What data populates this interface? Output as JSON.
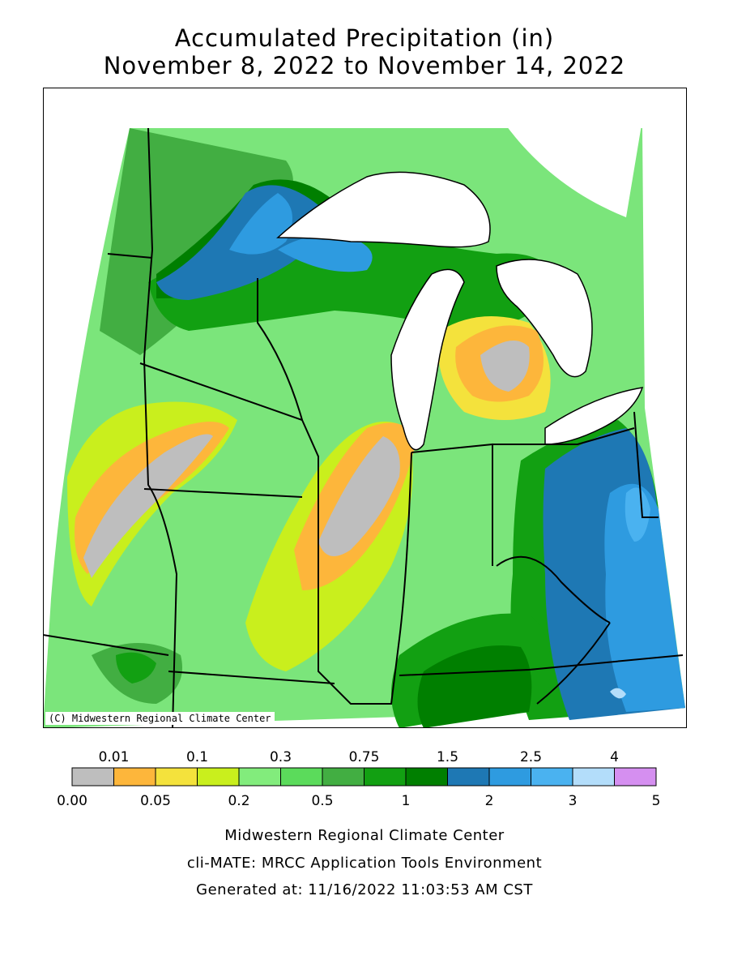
{
  "title": {
    "line1": "Accumulated Precipitation (in)",
    "line2": "November 8, 2022 to November 14, 2022"
  },
  "map": {
    "copyright": "(C) Midwestern Regional Climate Center",
    "colors": {
      "land_default": "#7be57b",
      "water": "#ffffff",
      "border": "#000000"
    }
  },
  "legend": {
    "unit": "in",
    "top_labels": [
      "0.01",
      "0.1",
      "0.3",
      "0.75",
      "1.5",
      "2.5",
      "4"
    ],
    "bottom_labels": [
      "0.00",
      "0.05",
      "0.2",
      "0.5",
      "1",
      "2",
      "3",
      "5"
    ],
    "colors": [
      "#bebebe",
      "#fdb63b",
      "#f4e23c",
      "#c9ef1d",
      "#82ec7c",
      "#5bdb5b",
      "#42ae42",
      "#12a012",
      "#007f00",
      "#1e78b4",
      "#2e9be0",
      "#4ab2f0",
      "#b3ddfa",
      "#d58ff0"
    ]
  },
  "footer": {
    "line1": "Midwestern Regional Climate Center",
    "line2": "cli-MATE: MRCC Application Tools Environment",
    "line3": "Generated at: 11/16/2022 11:03:53 AM CST"
  }
}
